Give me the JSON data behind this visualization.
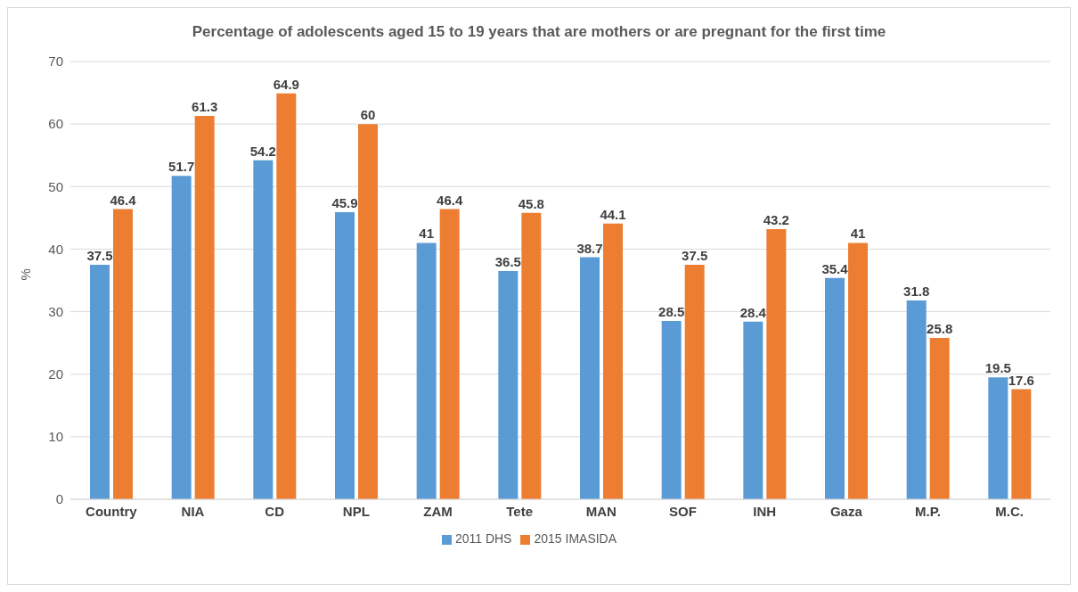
{
  "chart_data": {
    "type": "bar",
    "title": "Percentage of adolescents aged 15 to 19 years that are mothers or are pregnant for the first time",
    "ylabel": "%",
    "categories": [
      "Country",
      "NIA",
      "CD",
      "NPL",
      "ZAM",
      "Tete",
      "MAN",
      "SOF",
      "INH",
      "Gaza",
      "M.P.",
      "M.C."
    ],
    "series": [
      {
        "name": "2011 DHS",
        "color": "#5b9bd5",
        "values": [
          37.5,
          51.7,
          54.2,
          45.9,
          41,
          36.5,
          38.7,
          28.5,
          28.4,
          35.4,
          31.8,
          19.5
        ]
      },
      {
        "name": "2015 IMASIDA",
        "color": "#ed7d31",
        "values": [
          46.4,
          61.3,
          64.9,
          60,
          46.4,
          45.8,
          44.1,
          37.5,
          43.2,
          41,
          25.8,
          17.6
        ]
      }
    ],
    "ylim": [
      0,
      70
    ],
    "yticks": [
      0,
      10,
      20,
      30,
      40,
      50,
      60,
      70
    ],
    "grid": "y",
    "legend": "bottom",
    "data_labels": true
  }
}
